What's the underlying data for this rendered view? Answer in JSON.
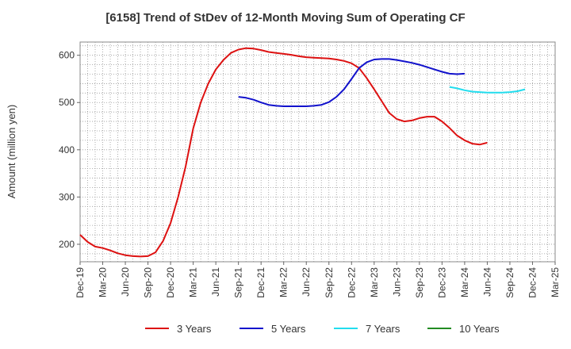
{
  "chart_data": {
    "type": "line",
    "title": "[6158]  Trend of StDev of 12-Month Moving Sum of Operating CF",
    "ylabel": "Amount (million yen)",
    "xlabel": "",
    "ylim": [
      163,
      628
    ],
    "y_ticks": [
      200,
      300,
      400,
      500,
      600
    ],
    "x_tick_labels": [
      "Dec-19",
      "Mar-20",
      "Jun-20",
      "Sep-20",
      "Dec-20",
      "Mar-21",
      "Jun-21",
      "Sep-21",
      "Dec-21",
      "Mar-22",
      "Jun-22",
      "Sep-22",
      "Dec-22",
      "Mar-23",
      "Jun-23",
      "Sep-23",
      "Dec-23",
      "Mar-24",
      "Jun-24",
      "Sep-24",
      "Dec-24",
      "Mar-25"
    ],
    "grid": true,
    "legend_position": "bottom",
    "series": [
      {
        "name": "3 Years",
        "color": "#dd1111",
        "start_index": 0,
        "values": [
          220,
          205,
          195,
          192,
          187,
          181,
          177,
          175,
          174,
          175,
          183,
          207,
          245,
          300,
          365,
          445,
          500,
          540,
          570,
          590,
          605,
          612,
          615,
          614,
          611,
          607,
          605,
          603,
          601,
          598,
          596,
          595,
          594,
          593,
          591,
          588,
          583,
          573,
          552,
          528,
          503,
          478,
          465,
          460,
          462,
          467,
          470,
          470,
          460,
          446,
          430,
          420,
          413,
          411,
          415
        ]
      },
      {
        "name": "5 Years",
        "color": "#1111cc",
        "start_index": 21,
        "values": [
          512,
          510,
          506,
          500,
          495,
          493,
          492,
          492,
          492,
          492,
          493,
          495,
          501,
          512,
          528,
          550,
          573,
          585,
          591,
          592,
          592,
          590,
          587,
          584,
          580,
          575,
          570,
          565,
          561,
          560,
          561
        ]
      },
      {
        "name": "7 Years",
        "color": "#22ddee",
        "start_index": 49,
        "values": [
          533,
          530,
          526,
          523,
          522,
          521,
          521,
          521,
          522,
          524,
          528
        ]
      },
      {
        "name": "10 Years",
        "color": "#228b22",
        "start_index": 0,
        "values": []
      }
    ]
  }
}
